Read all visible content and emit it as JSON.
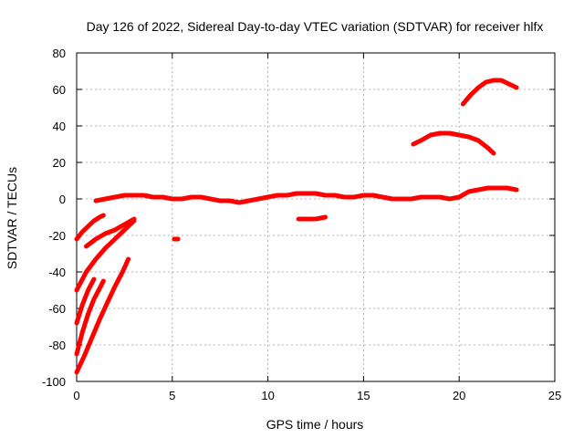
{
  "chart_data": {
    "type": "line",
    "title": "Day 126 of 2022, Sidereal Day-to-day VTEC variation (SDTVAR) for receiver hlfx",
    "xlabel": "GPS time / hours",
    "ylabel": "SDTVAR / TECUs",
    "xlim": [
      0,
      25
    ],
    "ylim": [
      -100,
      80
    ],
    "xticks": [
      "0",
      "5",
      "10",
      "15",
      "20",
      "25"
    ],
    "yticks": [
      "-100",
      "-80",
      "-60",
      "-40",
      "-20",
      "0",
      "20",
      "40",
      "60",
      "80"
    ],
    "grid": true,
    "color": "#ff0000",
    "series": [
      {
        "name": "main-track",
        "x": [
          1.0,
          1.5,
          2.0,
          2.5,
          3.0,
          3.5,
          4.0,
          4.5,
          5.0,
          5.5,
          6.0,
          6.5,
          7.0,
          7.5,
          8.0,
          8.5,
          9.0,
          9.5,
          10.0,
          10.5,
          11.0,
          11.5,
          12.0,
          12.5,
          13.0,
          13.5,
          14.0,
          14.5,
          15.0,
          15.5,
          16.0,
          16.5,
          17.0,
          17.5,
          18.0,
          18.5,
          19.0,
          19.5,
          20.0,
          20.5,
          21.0,
          21.5,
          22.0,
          22.5,
          23.0
        ],
        "y": [
          -1,
          0,
          1,
          2,
          2,
          2,
          1,
          1,
          0,
          0,
          1,
          1,
          0,
          -1,
          -1,
          -2,
          -1,
          0,
          1,
          2,
          2,
          3,
          3,
          3,
          2,
          2,
          1,
          1,
          2,
          2,
          1,
          0,
          0,
          0,
          1,
          1,
          1,
          0,
          1,
          4,
          5,
          6,
          6,
          6,
          5
        ]
      },
      {
        "name": "arc-upper",
        "x": [
          20.2,
          20.6,
          21.0,
          21.4,
          21.8,
          22.2,
          22.6,
          23.0
        ],
        "y": [
          52,
          57,
          61,
          64,
          65,
          65,
          63,
          61
        ]
      },
      {
        "name": "arc-mid",
        "x": [
          17.6,
          18.0,
          18.5,
          19.0,
          19.5,
          20.0,
          20.5,
          21.0,
          21.5,
          21.8
        ],
        "y": [
          30,
          32,
          35,
          36,
          36,
          35,
          34,
          32,
          28,
          25
        ]
      },
      {
        "name": "segment-12h",
        "x": [
          11.6,
          12.0,
          12.5,
          13.0
        ],
        "y": [
          -11,
          -11,
          -11,
          -10
        ]
      },
      {
        "name": "point-5h",
        "x": [
          5.1,
          5.3
        ],
        "y": [
          -22,
          -22
        ]
      },
      {
        "name": "early-1",
        "x": [
          0.0,
          0.3,
          0.6,
          0.9,
          1.2,
          1.4
        ],
        "y": [
          -22,
          -18,
          -15,
          -12,
          -10,
          -9
        ]
      },
      {
        "name": "early-2",
        "x": [
          0.5,
          1.0,
          1.5,
          2.0,
          2.5,
          3.0
        ],
        "y": [
          -26,
          -22,
          -19,
          -17,
          -14,
          -11
        ]
      },
      {
        "name": "early-3",
        "x": [
          0.0,
          0.5,
          1.0,
          1.5,
          2.0,
          2.5,
          3.0
        ],
        "y": [
          -50,
          -40,
          -33,
          -27,
          -22,
          -17,
          -12
        ]
      },
      {
        "name": "early-4",
        "x": [
          0.0,
          0.3,
          0.6,
          0.9
        ],
        "y": [
          -68,
          -58,
          -50,
          -44
        ]
      },
      {
        "name": "early-5",
        "x": [
          0.0,
          0.3,
          0.6,
          0.9,
          1.2,
          1.4
        ],
        "y": [
          -85,
          -73,
          -63,
          -55,
          -49,
          -45
        ]
      },
      {
        "name": "early-6",
        "x": [
          0.0,
          0.4,
          0.8,
          1.2,
          1.6,
          2.0,
          2.4,
          2.7
        ],
        "y": [
          -95,
          -86,
          -76,
          -66,
          -57,
          -48,
          -40,
          -33
        ]
      }
    ]
  }
}
